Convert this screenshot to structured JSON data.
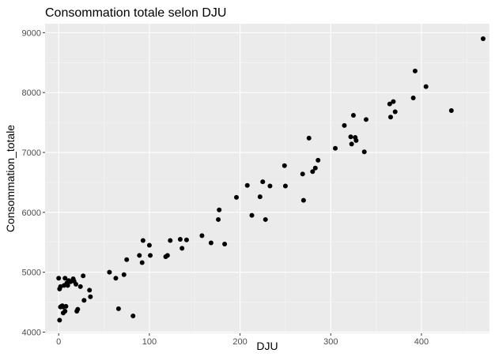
{
  "chart_data": {
    "type": "scatter",
    "title": "Consommation totale selon DJU",
    "xlabel": "DJU",
    "ylabel": "Consommation_totale",
    "xlim": [
      -15,
      475
    ],
    "ylim": [
      3980,
      9150
    ],
    "x_ticks": [
      0,
      100,
      200,
      300,
      400
    ],
    "y_ticks": [
      4000,
      5000,
      6000,
      7000,
      8000,
      9000
    ],
    "grid": true,
    "panel_color": "#ebebeb",
    "point_color": "#000000",
    "points": [
      {
        "x": 0,
        "y": 4900
      },
      {
        "x": 1,
        "y": 4720
      },
      {
        "x": 1,
        "y": 4200
      },
      {
        "x": 2,
        "y": 4760
      },
      {
        "x": 2,
        "y": 4420
      },
      {
        "x": 3,
        "y": 4430
      },
      {
        "x": 4,
        "y": 4440
      },
      {
        "x": 5,
        "y": 4420
      },
      {
        "x": 5,
        "y": 4320
      },
      {
        "x": 6,
        "y": 4780
      },
      {
        "x": 7,
        "y": 4900
      },
      {
        "x": 7,
        "y": 4350
      },
      {
        "x": 8,
        "y": 4430
      },
      {
        "x": 9,
        "y": 4820
      },
      {
        "x": 10,
        "y": 4780
      },
      {
        "x": 11,
        "y": 4860
      },
      {
        "x": 13,
        "y": 4840
      },
      {
        "x": 16,
        "y": 4890
      },
      {
        "x": 17,
        "y": 4850
      },
      {
        "x": 19,
        "y": 4800
      },
      {
        "x": 20,
        "y": 4350
      },
      {
        "x": 21,
        "y": 4380
      },
      {
        "x": 24,
        "y": 4760
      },
      {
        "x": 27,
        "y": 4940
      },
      {
        "x": 28,
        "y": 4530
      },
      {
        "x": 34,
        "y": 4700
      },
      {
        "x": 35,
        "y": 4590
      },
      {
        "x": 56,
        "y": 5000
      },
      {
        "x": 63,
        "y": 4900
      },
      {
        "x": 66,
        "y": 4390
      },
      {
        "x": 72,
        "y": 4960
      },
      {
        "x": 75,
        "y": 5210
      },
      {
        "x": 82,
        "y": 4270
      },
      {
        "x": 89,
        "y": 5280
      },
      {
        "x": 92,
        "y": 5160
      },
      {
        "x": 93,
        "y": 5530
      },
      {
        "x": 100,
        "y": 5450
      },
      {
        "x": 101,
        "y": 5280
      },
      {
        "x": 118,
        "y": 5260
      },
      {
        "x": 120,
        "y": 5280
      },
      {
        "x": 123,
        "y": 5530
      },
      {
        "x": 134,
        "y": 5550
      },
      {
        "x": 136,
        "y": 5400
      },
      {
        "x": 141,
        "y": 5540
      },
      {
        "x": 158,
        "y": 5610
      },
      {
        "x": 168,
        "y": 5490
      },
      {
        "x": 176,
        "y": 5880
      },
      {
        "x": 177,
        "y": 6040
      },
      {
        "x": 183,
        "y": 5470
      },
      {
        "x": 196,
        "y": 6250
      },
      {
        "x": 208,
        "y": 6450
      },
      {
        "x": 213,
        "y": 5950
      },
      {
        "x": 222,
        "y": 6260
      },
      {
        "x": 225,
        "y": 6510
      },
      {
        "x": 228,
        "y": 5880
      },
      {
        "x": 233,
        "y": 6440
      },
      {
        "x": 249,
        "y": 6780
      },
      {
        "x": 250,
        "y": 6440
      },
      {
        "x": 269,
        "y": 6640
      },
      {
        "x": 270,
        "y": 6200
      },
      {
        "x": 276,
        "y": 7240
      },
      {
        "x": 280,
        "y": 6680
      },
      {
        "x": 283,
        "y": 6740
      },
      {
        "x": 286,
        "y": 6870
      },
      {
        "x": 305,
        "y": 7070
      },
      {
        "x": 315,
        "y": 7450
      },
      {
        "x": 322,
        "y": 7260
      },
      {
        "x": 323,
        "y": 7140
      },
      {
        "x": 325,
        "y": 7620
      },
      {
        "x": 327,
        "y": 7250
      },
      {
        "x": 328,
        "y": 7200
      },
      {
        "x": 337,
        "y": 7010
      },
      {
        "x": 339,
        "y": 7550
      },
      {
        "x": 365,
        "y": 7810
      },
      {
        "x": 366,
        "y": 7590
      },
      {
        "x": 369,
        "y": 7850
      },
      {
        "x": 371,
        "y": 7680
      },
      {
        "x": 391,
        "y": 7910
      },
      {
        "x": 393,
        "y": 8360
      },
      {
        "x": 405,
        "y": 8100
      },
      {
        "x": 433,
        "y": 7700
      },
      {
        "x": 468,
        "y": 8900
      }
    ]
  }
}
